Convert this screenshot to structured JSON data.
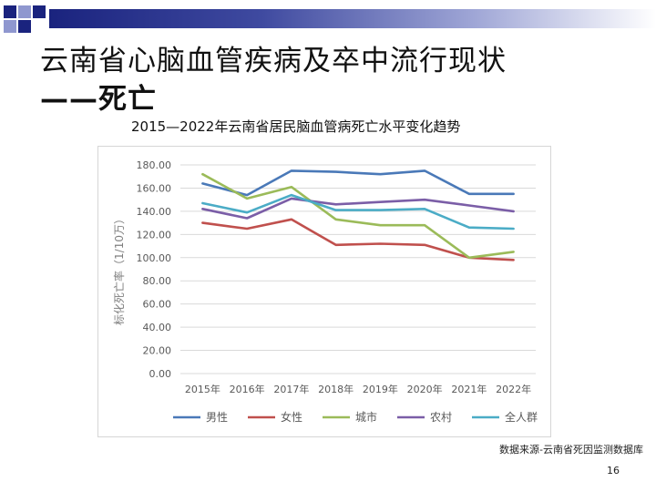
{
  "colors": {
    "accent": "#1a237e",
    "square_dark": "#1a237e",
    "square_light": "#8f97cf"
  },
  "slide": {
    "title_line1": "云南省心脑血管疾病及卒中流行现状",
    "title_line2": "——死亡",
    "chart_title": "2015—2022年云南省居民脑血管病死亡水平变化趋势",
    "source": "数据来源-云南省死因监测数据库",
    "page_number": "16"
  },
  "chart_data": {
    "type": "line",
    "title": "2015—2022年云南省居民脑血管病死亡水平变化趋势",
    "xlabel": "",
    "ylabel": "标化死亡率（1/10万）",
    "ylim": [
      0,
      180
    ],
    "ytick_step": 20,
    "yticks": [
      "0.00",
      "20.00",
      "40.00",
      "60.00",
      "80.00",
      "100.00",
      "120.00",
      "140.00",
      "160.00",
      "180.00"
    ],
    "categories": [
      "2015年",
      "2016年",
      "2017年",
      "2018年",
      "2019年",
      "2020年",
      "2021年",
      "2022年"
    ],
    "grid": true,
    "legend_position": "bottom",
    "series": [
      {
        "name": "男性",
        "color": "#4a79b8",
        "values": [
          164,
          154,
          175,
          174,
          172,
          175,
          155,
          155
        ]
      },
      {
        "name": "女性",
        "color": "#c0504d",
        "values": [
          130,
          125,
          133,
          111,
          112,
          111,
          100,
          98
        ]
      },
      {
        "name": "城市",
        "color": "#9bbb59",
        "values": [
          172,
          151,
          161,
          133,
          128,
          128,
          100,
          105
        ]
      },
      {
        "name": "农村",
        "color": "#7b5ea7",
        "values": [
          142,
          134,
          151,
          146,
          148,
          150,
          145,
          140
        ]
      },
      {
        "name": "全人群",
        "color": "#4bacc6",
        "values": [
          147,
          139,
          154,
          141,
          141,
          142,
          126,
          125
        ]
      }
    ]
  }
}
